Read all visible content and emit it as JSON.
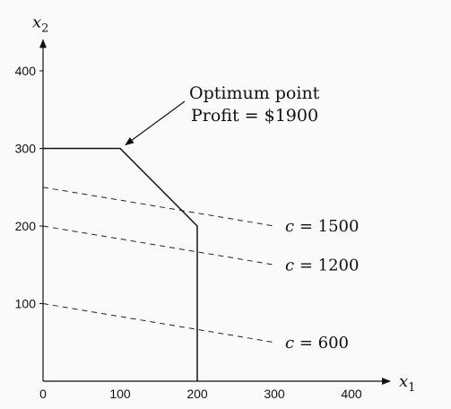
{
  "chart_data": {
    "type": "line",
    "x_axis_label": "x",
    "x_axis_subscript": "1",
    "y_axis_label": "x",
    "y_axis_subscript": "2",
    "x_ticks": [
      "0",
      "100",
      "200",
      "300",
      "400"
    ],
    "y_ticks": [
      "100",
      "200",
      "300",
      "400"
    ],
    "x_range": [
      0,
      450
    ],
    "y_range": [
      0,
      440
    ],
    "feasible_boundary": [
      [
        0,
        300
      ],
      [
        100,
        300
      ],
      [
        200,
        200
      ],
      [
        200,
        0
      ]
    ],
    "iso_profit_lines": [
      {
        "label": "c = 600",
        "value_text": "600",
        "points": [
          [
            0,
            100
          ],
          [
            300,
            50
          ]
        ]
      },
      {
        "label": "c = 1200",
        "value_text": "1200",
        "points": [
          [
            0,
            200
          ],
          [
            300,
            150
          ]
        ]
      },
      {
        "label": "c = 1500",
        "value_text": "1500",
        "points": [
          [
            0,
            250
          ],
          [
            300,
            200
          ]
        ]
      }
    ],
    "annotation": {
      "line1": "Optimum point",
      "line2": "Profit = $1900",
      "target": [
        100,
        300
      ]
    }
  }
}
